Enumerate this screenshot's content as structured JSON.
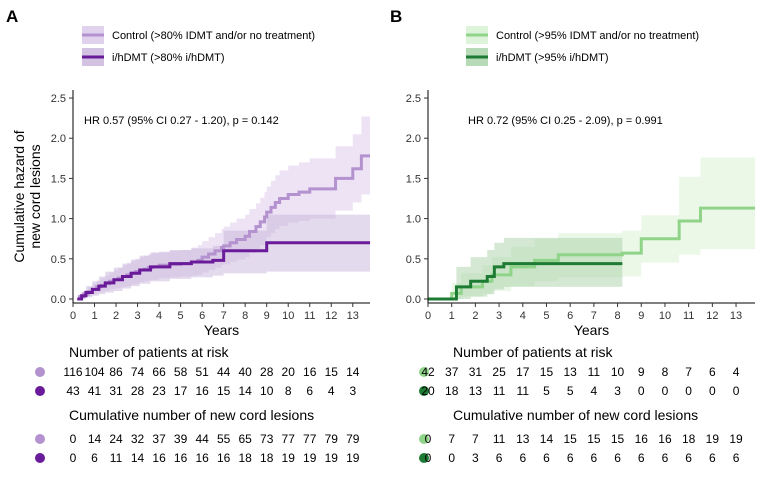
{
  "chart_data": [
    {
      "panel_label": "A",
      "type": "line",
      "subtype": "step",
      "xlabel": "Years",
      "ylabel": "Cumulative hazard of new cord lesions",
      "xlim": [
        0,
        13.8
      ],
      "ylim": [
        -0.05,
        2.6
      ],
      "x_ticks": [
        "0",
        "1",
        "2",
        "3",
        "4",
        "5",
        "6",
        "7",
        "8",
        "9",
        "10",
        "11",
        "12",
        "13"
      ],
      "y_ticks": [
        "0.0",
        "0.5",
        "1.0",
        "1.5",
        "2.0",
        "2.5"
      ],
      "annotation": "HR 0.57 (95% CI 0.27 - 1.20), p = 0.142",
      "legend_position": "top",
      "series": [
        {
          "name": "Control (>80% IDMT and/or no treatment)",
          "color": "#b491cf",
          "ci_color": "#d6c2e6",
          "x": [
            0.2,
            0.3,
            0.5,
            0.7,
            0.9,
            1.1,
            1.3,
            1.5,
            1.7,
            1.9,
            2.1,
            2.3,
            2.5,
            2.7,
            2.9,
            3.1,
            3.3,
            3.5,
            3.7,
            4.0,
            4.5,
            5.0,
            5.5,
            5.8,
            6.0,
            6.3,
            6.6,
            6.9,
            7.0,
            7.3,
            7.6,
            8.0,
            8.2,
            8.5,
            8.7,
            8.9,
            9.0,
            9.2,
            9.4,
            9.6,
            10.0,
            10.5,
            11.0,
            12.2,
            13.0,
            13.4,
            13.8
          ],
          "y": [
            0.0,
            0.03,
            0.06,
            0.09,
            0.12,
            0.15,
            0.17,
            0.19,
            0.22,
            0.24,
            0.26,
            0.28,
            0.3,
            0.32,
            0.34,
            0.36,
            0.37,
            0.39,
            0.4,
            0.42,
            0.43,
            0.44,
            0.46,
            0.48,
            0.52,
            0.56,
            0.6,
            0.64,
            0.66,
            0.7,
            0.74,
            0.78,
            0.84,
            0.9,
            0.96,
            1.02,
            1.08,
            1.14,
            1.2,
            1.25,
            1.3,
            1.33,
            1.37,
            1.5,
            1.62,
            1.78,
            1.78
          ],
          "ci_upper": [
            0.0,
            0.06,
            0.11,
            0.15,
            0.19,
            0.23,
            0.26,
            0.29,
            0.33,
            0.36,
            0.39,
            0.42,
            0.45,
            0.47,
            0.5,
            0.52,
            0.54,
            0.56,
            0.57,
            0.59,
            0.6,
            0.61,
            0.64,
            0.67,
            0.72,
            0.77,
            0.82,
            0.87,
            0.9,
            0.95,
            1.0,
            1.05,
            1.12,
            1.19,
            1.26,
            1.33,
            1.4,
            1.47,
            1.54,
            1.6,
            1.66,
            1.7,
            1.75,
            1.9,
            2.05,
            2.27,
            2.27
          ],
          "ci_lower": [
            0.0,
            0.0,
            0.02,
            0.04,
            0.06,
            0.08,
            0.09,
            0.1,
            0.12,
            0.13,
            0.14,
            0.15,
            0.16,
            0.18,
            0.19,
            0.21,
            0.22,
            0.23,
            0.24,
            0.26,
            0.27,
            0.28,
            0.29,
            0.3,
            0.33,
            0.36,
            0.39,
            0.42,
            0.43,
            0.46,
            0.49,
            0.52,
            0.57,
            0.62,
            0.67,
            0.72,
            0.77,
            0.82,
            0.87,
            0.91,
            0.95,
            0.97,
            1.0,
            1.1,
            1.2,
            1.3,
            1.3
          ]
        },
        {
          "name": "i/hDMT (>80% i/hDMT)",
          "color": "#6a1b9a",
          "ci_color": "#c4aed8",
          "x": [
            0.2,
            0.4,
            0.6,
            0.9,
            1.2,
            1.5,
            1.9,
            2.3,
            2.7,
            3.1,
            3.6,
            4.5,
            5.5,
            6.5,
            7.0,
            9.0,
            13.8
          ],
          "y": [
            0.0,
            0.04,
            0.08,
            0.12,
            0.16,
            0.2,
            0.24,
            0.28,
            0.32,
            0.36,
            0.4,
            0.44,
            0.46,
            0.48,
            0.6,
            0.7,
            0.7
          ],
          "ci_upper": [
            0.0,
            0.09,
            0.16,
            0.22,
            0.28,
            0.34,
            0.39,
            0.44,
            0.49,
            0.54,
            0.58,
            0.61,
            0.63,
            0.66,
            0.85,
            1.05,
            1.05
          ],
          "ci_lower": [
            0.0,
            0.0,
            0.02,
            0.04,
            0.06,
            0.08,
            0.1,
            0.13,
            0.16,
            0.19,
            0.22,
            0.25,
            0.27,
            0.29,
            0.32,
            0.34,
            0.34
          ]
        }
      ],
      "risk_table": {
        "title": "Number of patients at risk",
        "rows": [
          [
            "116",
            "104",
            "86",
            "74",
            "66",
            "58",
            "51",
            "44",
            "40",
            "28",
            "20",
            "16",
            "15",
            "14"
          ],
          [
            "43",
            "41",
            "31",
            "28",
            "23",
            "17",
            "16",
            "15",
            "14",
            "10",
            "8",
            "6",
            "4",
            "3"
          ]
        ]
      },
      "events_table": {
        "title": "Cumulative number of new cord lesions",
        "rows": [
          [
            "0",
            "14",
            "24",
            "32",
            "37",
            "39",
            "44",
            "55",
            "65",
            "73",
            "77",
            "77",
            "79",
            "79"
          ],
          [
            "0",
            "6",
            "11",
            "14",
            "16",
            "16",
            "16",
            "16",
            "18",
            "18",
            "19",
            "19",
            "19",
            "19"
          ]
        ]
      }
    },
    {
      "panel_label": "B",
      "type": "line",
      "subtype": "step",
      "xlabel": "Years",
      "ylabel": "",
      "xlim": [
        0,
        13.8
      ],
      "ylim": [
        -0.05,
        2.6
      ],
      "x_ticks": [
        "0",
        "1",
        "2",
        "3",
        "4",
        "5",
        "6",
        "7",
        "8",
        "9",
        "10",
        "11",
        "12",
        "13"
      ],
      "y_ticks": [
        "0.0",
        "0.5",
        "1.0",
        "1.5",
        "2.0",
        "2.5"
      ],
      "annotation": "HR 0.72 (95% CI 0.25 - 2.09), p = 0.991",
      "legend_position": "top",
      "series": [
        {
          "name": "Control (>95% IDMT and/or no treatment)",
          "color": "#90d48a",
          "ci_color": "#d2efcd",
          "x": [
            0.0,
            1.0,
            1.4,
            2.3,
            2.7,
            3.5,
            4.5,
            5.5,
            7.0,
            8.2,
            9.0,
            10.0,
            10.6,
            11.5,
            13.8
          ],
          "y": [
            0.0,
            0.07,
            0.15,
            0.22,
            0.3,
            0.4,
            0.48,
            0.55,
            0.55,
            0.57,
            0.75,
            0.75,
            0.97,
            1.13,
            1.13
          ],
          "ci_upper": [
            0.0,
            0.2,
            0.32,
            0.42,
            0.52,
            0.65,
            0.75,
            0.82,
            0.82,
            0.85,
            1.04,
            1.04,
            1.52,
            1.76,
            1.76
          ],
          "ci_lower": [
            0.0,
            0.0,
            0.03,
            0.06,
            0.1,
            0.16,
            0.22,
            0.27,
            0.27,
            0.28,
            0.45,
            0.45,
            0.55,
            0.62,
            0.62
          ]
        },
        {
          "name": "i/hDMT (>95% i/hDMT)",
          "color": "#1e7b34",
          "ci_color": "#9fcd9f",
          "x": [
            0.0,
            1.2,
            1.8,
            2.5,
            2.8,
            3.2,
            8.2
          ],
          "y": [
            0.0,
            0.15,
            0.22,
            0.28,
            0.4,
            0.44,
            0.44
          ],
          "ci_upper": [
            0.0,
            0.4,
            0.52,
            0.61,
            0.7,
            0.76,
            0.76
          ],
          "ci_lower": [
            0.0,
            0.0,
            0.03,
            0.06,
            0.12,
            0.15,
            0.15
          ]
        }
      ],
      "risk_table": {
        "title": "Number of patients at risk",
        "rows": [
          [
            "42",
            "37",
            "31",
            "25",
            "17",
            "15",
            "13",
            "11",
            "10",
            "9",
            "8",
            "7",
            "6",
            "4"
          ],
          [
            "20",
            "18",
            "13",
            "11",
            "11",
            "5",
            "5",
            "4",
            "3",
            "0",
            "0",
            "0",
            "0",
            "0"
          ]
        ]
      },
      "events_table": {
        "title": "Cumulative number of new cord lesions",
        "rows": [
          [
            "0",
            "7",
            "7",
            "11",
            "13",
            "14",
            "15",
            "15",
            "15",
            "16",
            "16",
            "18",
            "19",
            "19"
          ],
          [
            "0",
            "0",
            "3",
            "6",
            "6",
            "6",
            "6",
            "6",
            "6",
            "6",
            "6",
            "6",
            "6",
            "6"
          ]
        ]
      }
    }
  ]
}
